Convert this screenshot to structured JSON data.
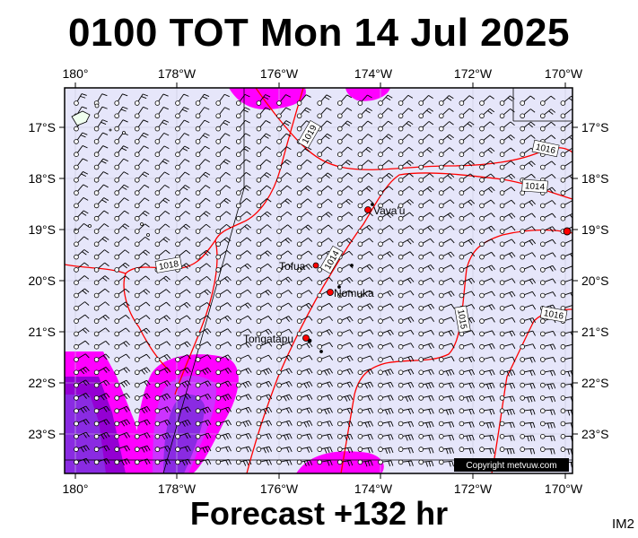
{
  "header": {
    "title": "0100 TOT Mon 14 Jul 2025"
  },
  "footer": {
    "forecast_label": "Forecast +132 hr",
    "corner_code": "IM2"
  },
  "map": {
    "lon_ticks": [
      "180°",
      "178°W",
      "176°W",
      "174°W",
      "172°W",
      "170°W"
    ],
    "lat_ticks": [
      "17°S",
      "18°S",
      "19°S",
      "20°S",
      "21°S",
      "22°S",
      "23°S"
    ],
    "places": [
      {
        "name": "Vava'u"
      },
      {
        "name": "Tofua"
      },
      {
        "name": "Nomuka"
      },
      {
        "name": "Tongatapu"
      }
    ],
    "isobar_labels": [
      "1019",
      "1016",
      "1014",
      "1018",
      "1014",
      "1015",
      "1016"
    ],
    "copyright": "Copyright metvuw.com",
    "colors": {
      "sea": "#e6e6fa",
      "isobar": "#ff0000",
      "rain_light": "#ff00ff",
      "rain_heavy": "#8a2be2"
    }
  }
}
